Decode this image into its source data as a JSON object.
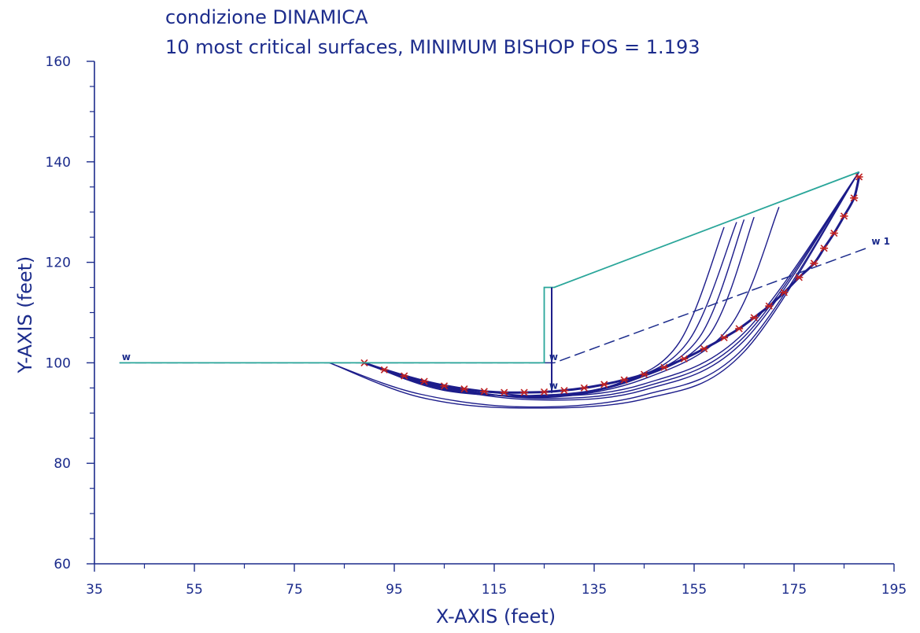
{
  "colors": {
    "axis": "#1c2c8c",
    "surfaces": "#1c1c8a",
    "slope": "#2aa69a",
    "water": "#1c2c8c",
    "critical_marker": "#c02020"
  },
  "chart_data": {
    "type": "line",
    "title": "condizione DINAMICA",
    "subtitle": "10 most critical surfaces, MINIMUM BISHOP FOS =  1.193",
    "xlabel": "X-AXIS (feet)",
    "ylabel": "Y-AXIS (feet)",
    "xlim": [
      35,
      195
    ],
    "ylim": [
      60,
      160
    ],
    "x_ticks": [
      35,
      55,
      75,
      95,
      115,
      135,
      155,
      175,
      195
    ],
    "y_ticks": [
      60,
      80,
      100,
      120,
      140,
      160
    ],
    "x_tick_labels": [
      "35",
      "55",
      "75",
      "95",
      "115",
      "135",
      "155",
      "175",
      "195"
    ],
    "y_tick_labels": [
      "60",
      "80",
      "100",
      "120",
      "140",
      "160"
    ],
    "grid": false,
    "slope_profile": [
      [
        40,
        100
      ],
      [
        125,
        100
      ],
      [
        125,
        115
      ],
      [
        127,
        115
      ],
      [
        188,
        138
      ]
    ],
    "water_table": [
      [
        40,
        100
      ],
      [
        127,
        100
      ],
      [
        190,
        123
      ]
    ],
    "water_labels": [
      {
        "text": "w",
        "x": 40.5,
        "y": 100.5
      },
      {
        "text": "w",
        "x": 126,
        "y": 100.5
      },
      {
        "text": "w",
        "x": 126,
        "y": 94.8
      },
      {
        "text": "w 1",
        "x": 190.5,
        "y": 123.5
      }
    ],
    "critical_surface": {
      "fos": 1.193,
      "points": [
        [
          89,
          100
        ],
        [
          93,
          98.6
        ],
        [
          97,
          97.4
        ],
        [
          101,
          96.3
        ],
        [
          105,
          95.4
        ],
        [
          109,
          94.8
        ],
        [
          113,
          94.3
        ],
        [
          117,
          94.1
        ],
        [
          121,
          94.1
        ],
        [
          125,
          94.2
        ],
        [
          129,
          94.5
        ],
        [
          133,
          95
        ],
        [
          137,
          95.7
        ],
        [
          141,
          96.6
        ],
        [
          145,
          97.7
        ],
        [
          149,
          99.1
        ],
        [
          153,
          100.8
        ],
        [
          157,
          102.8
        ],
        [
          161,
          105
        ],
        [
          164,
          106.8
        ],
        [
          167,
          109
        ],
        [
          170,
          111.3
        ],
        [
          173,
          114
        ],
        [
          176,
          117
        ],
        [
          179,
          119.8
        ],
        [
          181,
          122.8
        ],
        [
          183,
          125.8
        ],
        [
          185,
          129.2
        ],
        [
          187,
          132.8
        ],
        [
          188,
          137
        ]
      ]
    },
    "surfaces": [
      {
        "points": [
          [
            89,
            100
          ],
          [
            105,
            95.6
          ],
          [
            125,
            93.4
          ],
          [
            145,
            95.8
          ],
          [
            165,
            106
          ],
          [
            188,
            138
          ]
        ]
      },
      {
        "points": [
          [
            89,
            100
          ],
          [
            105,
            95.2
          ],
          [
            125,
            92.9
          ],
          [
            145,
            95.2
          ],
          [
            165,
            105.2
          ],
          [
            188,
            138
          ]
        ]
      },
      {
        "points": [
          [
            89,
            100
          ],
          [
            105,
            94.9
          ],
          [
            125,
            92.6
          ],
          [
            145,
            94.6
          ],
          [
            165,
            104.4
          ],
          [
            188,
            138
          ]
        ]
      },
      {
        "points": [
          [
            82,
            100
          ],
          [
            100,
            93.8
          ],
          [
            122,
            91.2
          ],
          [
            145,
            93.6
          ],
          [
            165,
            103
          ],
          [
            188,
            138
          ]
        ]
      },
      {
        "points": [
          [
            82,
            100
          ],
          [
            100,
            93.2
          ],
          [
            120,
            91
          ],
          [
            145,
            92.8
          ],
          [
            165,
            102.2
          ],
          [
            188,
            138
          ]
        ]
      },
      {
        "points": [
          [
            89,
            100
          ],
          [
            105,
            94.5
          ],
          [
            125,
            93.6
          ],
          [
            140,
            96
          ],
          [
            152,
            104
          ],
          [
            161,
            127
          ]
        ]
      },
      {
        "points": [
          [
            89,
            100
          ],
          [
            105,
            94.7
          ],
          [
            125,
            93.4
          ],
          [
            141,
            96.2
          ],
          [
            154,
            104.5
          ],
          [
            163.5,
            128
          ]
        ]
      },
      {
        "points": [
          [
            89,
            100
          ],
          [
            105,
            94.9
          ],
          [
            125,
            93.3
          ],
          [
            142,
            96.4
          ],
          [
            156,
            105
          ],
          [
            165,
            128.5
          ]
        ]
      },
      {
        "points": [
          [
            89,
            100
          ],
          [
            105,
            95.1
          ],
          [
            125,
            93.2
          ],
          [
            143,
            96.6
          ],
          [
            158,
            105.5
          ],
          [
            167,
            129
          ]
        ]
      },
      {
        "points": [
          [
            89,
            100
          ],
          [
            105,
            95.3
          ],
          [
            125,
            93.1
          ],
          [
            145,
            96.8
          ],
          [
            162,
            107
          ],
          [
            172,
            131
          ]
        ]
      }
    ]
  }
}
